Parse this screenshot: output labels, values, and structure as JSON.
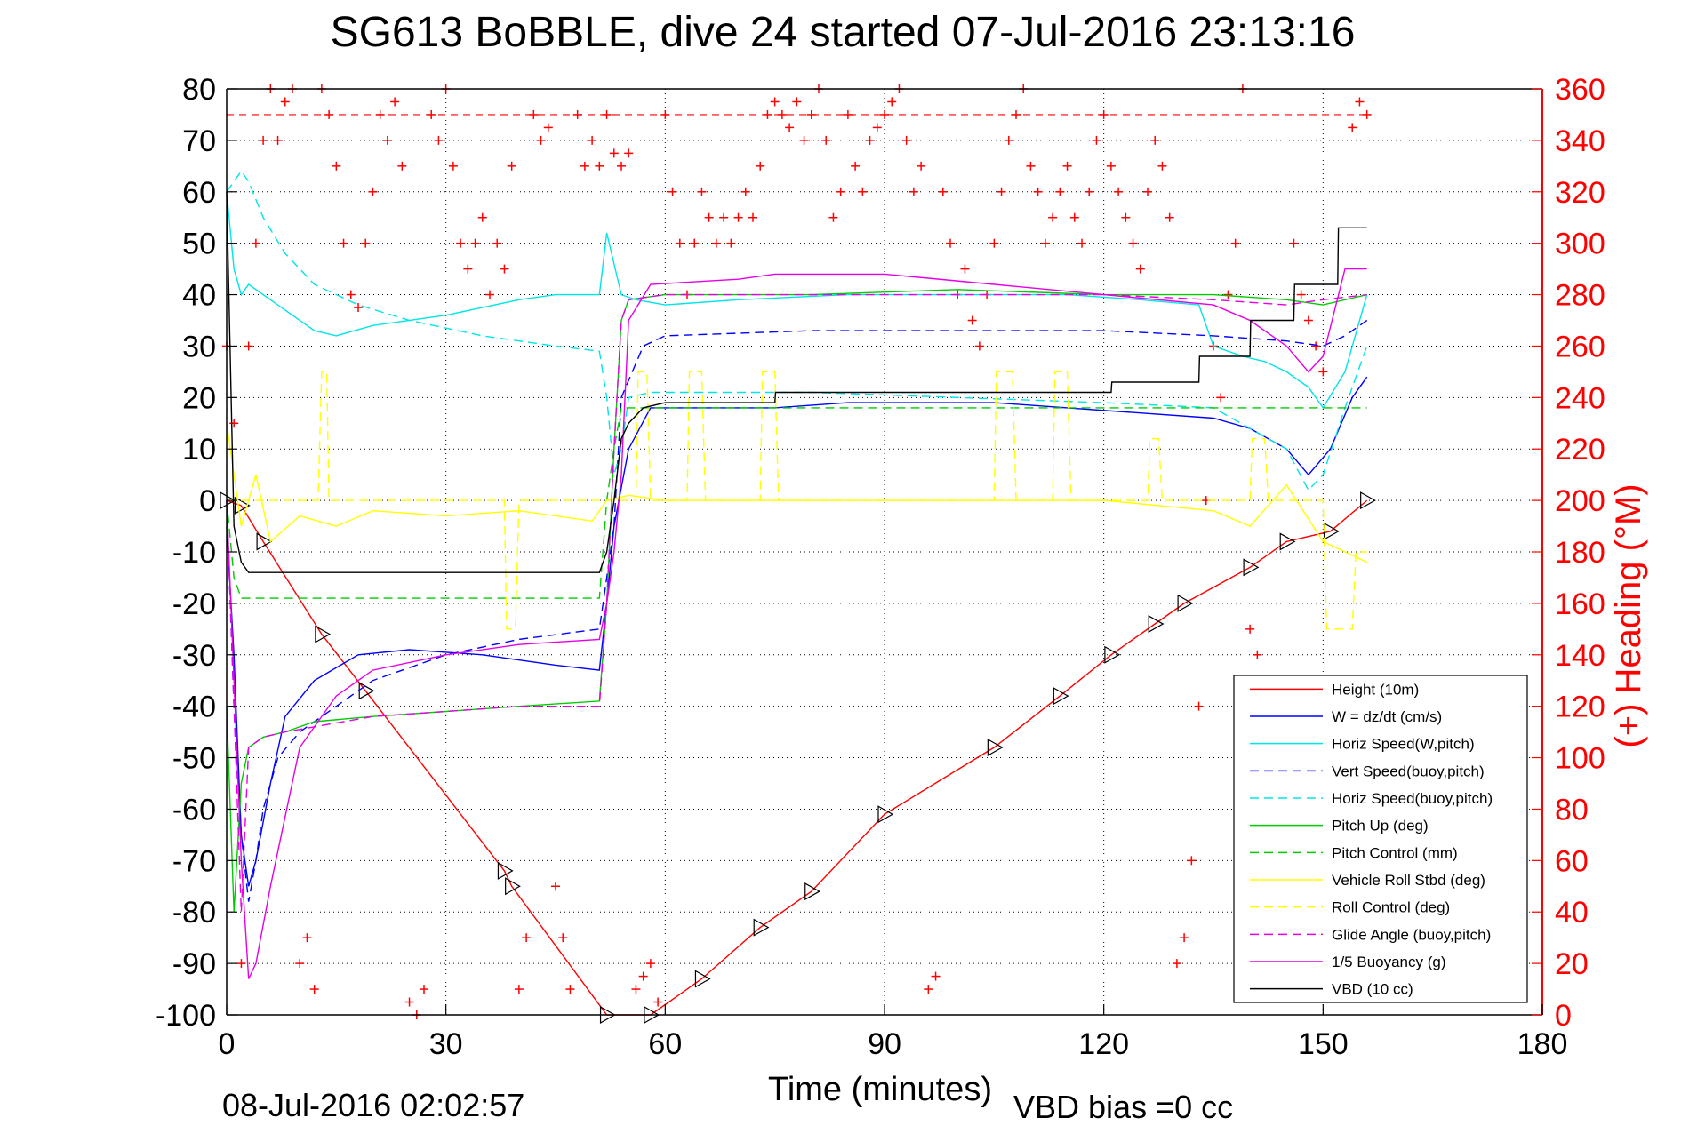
{
  "chart_data": {
    "type": "line",
    "title": "SG613 BoBBLE, dive 24 started 07-Jul-2016 23:13:16",
    "xlabel": "Time (minutes)",
    "ylabel_right": "(+) Heading (°M)",
    "footer_left": "08-Jul-2016 02:02:57",
    "footer_right": "VBD bias =0 cc",
    "xlim": [
      0,
      180
    ],
    "ylim": [
      -100,
      80
    ],
    "ylim_right": [
      0,
      360
    ],
    "x_ticks": [
      0,
      30,
      60,
      90,
      120,
      150,
      180
    ],
    "y_ticks": [
      -100,
      -90,
      -80,
      -70,
      -60,
      -50,
      -40,
      -30,
      -20,
      -10,
      0,
      10,
      20,
      30,
      40,
      50,
      60,
      70,
      80
    ],
    "y_ticks_right": [
      0,
      20,
      40,
      60,
      80,
      100,
      120,
      140,
      160,
      180,
      200,
      220,
      240,
      260,
      280,
      300,
      320,
      340,
      360
    ],
    "grid": true,
    "legend_position": "lower-right",
    "series": [
      {
        "name": "Height (10m)",
        "color": "#ff0000",
        "dash": "solid",
        "marker": "triangle",
        "x": [
          0,
          2,
          5,
          13,
          19,
          38,
          39,
          52,
          58,
          65,
          73,
          80,
          90,
          105,
          114,
          121,
          127,
          131,
          140,
          145,
          151,
          156
        ],
        "y": [
          0,
          -1,
          -8,
          -26,
          -37,
          -72,
          -75,
          -100,
          -100,
          -93,
          -83,
          -76,
          -61,
          -48,
          -38,
          -30,
          -24,
          -20,
          -13,
          -8,
          -6,
          0
        ]
      },
      {
        "name": "W = dz/dt (cm/s)",
        "color": "#0000ff",
        "dash": "solid",
        "x": [
          0,
          1,
          2,
          3,
          4,
          6,
          8,
          12,
          18,
          25,
          35,
          45,
          51,
          52,
          53,
          55,
          58,
          65,
          75,
          85,
          95,
          105,
          115,
          125,
          135,
          140,
          145,
          148,
          151,
          154,
          156
        ],
        "y": [
          -5,
          -30,
          -65,
          -75,
          -70,
          -55,
          -42,
          -35,
          -30,
          -29,
          -30,
          -32,
          -33,
          -20,
          -5,
          10,
          18,
          18,
          18,
          19,
          19,
          19,
          18,
          17,
          16,
          14,
          10,
          5,
          10,
          20,
          24
        ]
      },
      {
        "name": "Horiz Speed(W,pitch)",
        "color": "#00e5e5",
        "dash": "solid",
        "x": [
          0,
          1,
          2,
          3,
          5,
          8,
          12,
          15,
          20,
          30,
          40,
          45,
          51,
          52,
          54,
          56,
          60,
          70,
          85,
          100,
          115,
          125,
          133,
          135,
          139,
          142,
          145,
          148,
          150,
          153,
          156
        ],
        "y": [
          60,
          45,
          40,
          42,
          40,
          37,
          33,
          32,
          34,
          36,
          39,
          40,
          40,
          52,
          40,
          39,
          38,
          39,
          40,
          40,
          40,
          39,
          38,
          30,
          28,
          27,
          25,
          22,
          18,
          25,
          40
        ]
      },
      {
        "name": "Vert Speed(buoy,pitch)",
        "color": "#0000ff",
        "dash": "dashed",
        "x": [
          0,
          1,
          2,
          3,
          4,
          5,
          7,
          10,
          15,
          20,
          30,
          40,
          51,
          52,
          53,
          54,
          57,
          60,
          80,
          100,
          120,
          135,
          145,
          150,
          153,
          156
        ],
        "y": [
          0,
          -40,
          -65,
          -78,
          -70,
          -60,
          -50,
          -45,
          -40,
          -35,
          -30,
          -27,
          -25,
          -15,
          -5,
          20,
          30,
          32,
          33,
          33,
          33,
          32,
          31,
          30,
          32,
          35
        ]
      },
      {
        "name": "Horiz Speed(buoy,pitch)",
        "color": "#00e5e5",
        "dash": "dashed",
        "x": [
          0,
          1,
          2,
          3,
          5,
          8,
          12,
          18,
          25,
          35,
          45,
          51,
          52,
          53,
          54,
          55,
          58,
          65,
          80,
          100,
          120,
          135,
          145,
          148,
          150,
          153,
          156
        ],
        "y": [
          60,
          62,
          64,
          62,
          55,
          48,
          42,
          38,
          35,
          32,
          30,
          29,
          20,
          5,
          10,
          20,
          21,
          21,
          21,
          20,
          19,
          18,
          10,
          2,
          5,
          18,
          30
        ]
      },
      {
        "name": "Pitch Up (deg)",
        "color": "#00cc00",
        "dash": "solid",
        "x": [
          0,
          1,
          2,
          3,
          5,
          8,
          12,
          20,
          30,
          40,
          51,
          52,
          53,
          54,
          55,
          60,
          80,
          100,
          120,
          135,
          145,
          150,
          156
        ],
        "y": [
          -40,
          -80,
          -55,
          -48,
          -46,
          -45,
          -43,
          -42,
          -41,
          -40,
          -39,
          -20,
          10,
          35,
          39,
          40,
          40,
          41,
          40,
          40,
          39,
          38,
          40
        ]
      },
      {
        "name": "Pitch Control (mm)",
        "color": "#00cc00",
        "dash": "dashed",
        "x": [
          0,
          1,
          2,
          3,
          51,
          52,
          53,
          54,
          55,
          156
        ],
        "y": [
          0,
          -15,
          -19,
          -19,
          -19,
          0,
          10,
          18,
          18,
          18
        ]
      },
      {
        "name": "Vehicle Roll Stbd (deg)",
        "color": "#ffff00",
        "dash": "solid",
        "x": [
          0,
          2,
          4,
          6,
          10,
          15,
          20,
          30,
          40,
          50,
          52,
          55,
          60,
          80,
          100,
          120,
          135,
          140,
          145,
          150,
          153,
          156
        ],
        "y": [
          15,
          -5,
          5,
          -8,
          -3,
          -5,
          -2,
          -3,
          -2,
          -4,
          0,
          1,
          0,
          0,
          0,
          0,
          -2,
          -5,
          3,
          -8,
          -10,
          -12
        ]
      },
      {
        "name": "Roll Control (deg)",
        "color": "#ffff00",
        "dash": "dashed",
        "x": [
          0,
          12.5,
          13,
          13.7,
          14,
          30,
          38,
          38.3,
          39.5,
          40,
          52,
          56,
          56.3,
          57.5,
          58,
          63,
          63.3,
          65,
          65.5,
          73,
          73.3,
          75,
          75.5,
          105,
          105.3,
          107.5,
          108,
          113,
          113.3,
          115,
          115.5,
          126,
          126.3,
          127.5,
          128,
          140,
          140.3,
          142,
          142.5,
          150,
          150.5,
          154,
          154.5,
          156
        ],
        "y": [
          0,
          0,
          25,
          25,
          0,
          0,
          0,
          -25,
          -25,
          0,
          0,
          0,
          25,
          25,
          0,
          0,
          25,
          25,
          0,
          0,
          25,
          25,
          0,
          0,
          25,
          25,
          0,
          0,
          25,
          25,
          0,
          0,
          12,
          12,
          0,
          0,
          12,
          12,
          0,
          0,
          -25,
          -25,
          -10,
          -10
        ]
      },
      {
        "name": "Glide Angle (buoy,pitch)",
        "color": "#e600e6",
        "dash": "dashed",
        "x": [
          0,
          2,
          3,
          5,
          8,
          12,
          20,
          30,
          40,
          51,
          52,
          53,
          54,
          55,
          60,
          80,
          100,
          120,
          135,
          145,
          150,
          156
        ],
        "y": [
          0,
          -80,
          -48,
          -46,
          -45,
          -44,
          -42,
          -41,
          -40,
          -40,
          -20,
          10,
          35,
          39,
          40,
          40,
          40,
          40,
          39,
          38,
          39,
          40
        ]
      },
      {
        "name": "1/5 Buoyancy (g)",
        "color": "#e600e6",
        "dash": "solid",
        "x": [
          0,
          2,
          3,
          4,
          6,
          10,
          15,
          20,
          30,
          40,
          51,
          52,
          53,
          54,
          55,
          58,
          70,
          75,
          90,
          105,
          120,
          135,
          140,
          145,
          148,
          150,
          153,
          156
        ],
        "y": [
          0,
          -70,
          -93,
          -90,
          -75,
          -48,
          -38,
          -33,
          -30,
          -28,
          -27,
          -20,
          -10,
          5,
          35,
          42,
          43,
          44,
          44,
          42,
          40,
          38,
          35,
          30,
          25,
          28,
          45,
          45
        ]
      },
      {
        "name": "VBD (10 cc)",
        "color": "#000000",
        "dash": "solid",
        "x": [
          0,
          1,
          2,
          3,
          4,
          51,
          52,
          53,
          54,
          55,
          57,
          60,
          75,
          75.1,
          121,
          121.1,
          133,
          133.1,
          140,
          140.1,
          146,
          146.1,
          152,
          152.1,
          156
        ],
        "y": [
          60,
          -5,
          -12,
          -14,
          -14,
          -14,
          -10,
          0,
          12,
          15,
          18,
          19,
          19,
          21,
          21,
          23,
          23,
          28,
          28,
          35,
          35,
          42,
          42,
          53,
          53
        ]
      }
    ],
    "heading_series": {
      "name": "Heading (°M)",
      "color": "#ff0000",
      "marker": "+",
      "x": [
        0,
        1,
        2,
        3,
        4,
        5,
        6,
        7,
        8,
        9,
        10,
        11,
        12,
        13,
        14,
        15,
        16,
        17,
        18,
        19,
        20,
        21,
        22,
        23,
        24,
        25,
        26,
        27,
        28,
        29,
        30,
        31,
        32,
        33,
        34,
        35,
        36,
        37,
        38,
        39,
        40,
        41,
        42,
        43,
        44,
        45,
        46,
        47,
        48,
        49,
        50,
        51,
        52,
        53,
        54,
        55,
        56,
        57,
        58,
        59,
        60,
        61,
        62,
        63,
        64,
        65,
        66,
        67,
        68,
        69,
        70,
        71,
        72,
        73,
        74,
        75,
        76,
        77,
        78,
        79,
        80,
        81,
        82,
        83,
        84,
        85,
        86,
        87,
        88,
        89,
        90,
        91,
        92,
        93,
        94,
        95,
        96,
        97,
        98,
        99,
        100,
        101,
        102,
        103,
        104,
        105,
        106,
        107,
        108,
        109,
        110,
        111,
        112,
        113,
        114,
        115,
        116,
        117,
        118,
        119,
        120,
        121,
        122,
        123,
        124,
        125,
        126,
        127,
        128,
        129,
        130,
        131,
        132,
        133,
        134,
        135,
        136,
        137,
        138,
        139,
        140,
        141,
        142,
        143,
        144,
        145,
        146,
        147,
        148,
        149,
        150,
        151,
        152,
        153,
        154,
        155,
        156
      ],
      "y": [
        260,
        230,
        20,
        260,
        300,
        340,
        360,
        340,
        355,
        360,
        20,
        30,
        10,
        360,
        350,
        330,
        300,
        280,
        275,
        300,
        320,
        350,
        340,
        355,
        330,
        5,
        0,
        10,
        350,
        340,
        360,
        330,
        300,
        290,
        300,
        310,
        280,
        300,
        290,
        330,
        10,
        30,
        350,
        340,
        345,
        50,
        30,
        10,
        350,
        330,
        340,
        330,
        350,
        335,
        330,
        335,
        10,
        15,
        20,
        5,
        350,
        320,
        300,
        280,
        300,
        320,
        310,
        300,
        310,
        300,
        310,
        320,
        310,
        330,
        350,
        355,
        350,
        345,
        355,
        340,
        350,
        360,
        340,
        310,
        320,
        350,
        330,
        320,
        340,
        345,
        350,
        355,
        360,
        340,
        320,
        330,
        10,
        15,
        320,
        300,
        280,
        290,
        270,
        260,
        280,
        300,
        320,
        340,
        350,
        360,
        330,
        320,
        300,
        310,
        320,
        330,
        310,
        300,
        320,
        340,
        350,
        330,
        320,
        310,
        300,
        290,
        320,
        340,
        330,
        310,
        20,
        30,
        60,
        120,
        200,
        260,
        240,
        280,
        300,
        360,
        150,
        140,
        100,
        120,
        80,
        40,
        300,
        280,
        270,
        260,
        250,
        30,
        10,
        20,
        345,
        355,
        350
      ]
    },
    "heading_reference_line": 350
  },
  "legend_entries": [
    {
      "label": "Height (10m)",
      "color": "#ff0000",
      "dash": "solid"
    },
    {
      "label": "W = dz/dt (cm/s)",
      "color": "#0000ff",
      "dash": "solid"
    },
    {
      "label": "Horiz Speed(W,pitch)",
      "color": "#00e5e5",
      "dash": "solid"
    },
    {
      "label": "Vert Speed(buoy,pitch)",
      "color": "#0000ff",
      "dash": "dashed"
    },
    {
      "label": "Horiz Speed(buoy,pitch)",
      "color": "#00e5e5",
      "dash": "dashed"
    },
    {
      "label": "Pitch Up (deg)",
      "color": "#00cc00",
      "dash": "solid"
    },
    {
      "label": "Pitch Control (mm)",
      "color": "#00cc00",
      "dash": "dashed"
    },
    {
      "label": "Vehicle Roll Stbd (deg)",
      "color": "#ffff00",
      "dash": "solid"
    },
    {
      "label": "Roll Control (deg)",
      "color": "#ffff00",
      "dash": "dashed"
    },
    {
      "label": "Glide Angle (buoy,pitch)",
      "color": "#e600e6",
      "dash": "dashed"
    },
    {
      "label": "1/5 Buoyancy (g)",
      "color": "#e600e6",
      "dash": "solid"
    },
    {
      "label": "VBD (10 cc)",
      "color": "#000000",
      "dash": "solid"
    }
  ]
}
